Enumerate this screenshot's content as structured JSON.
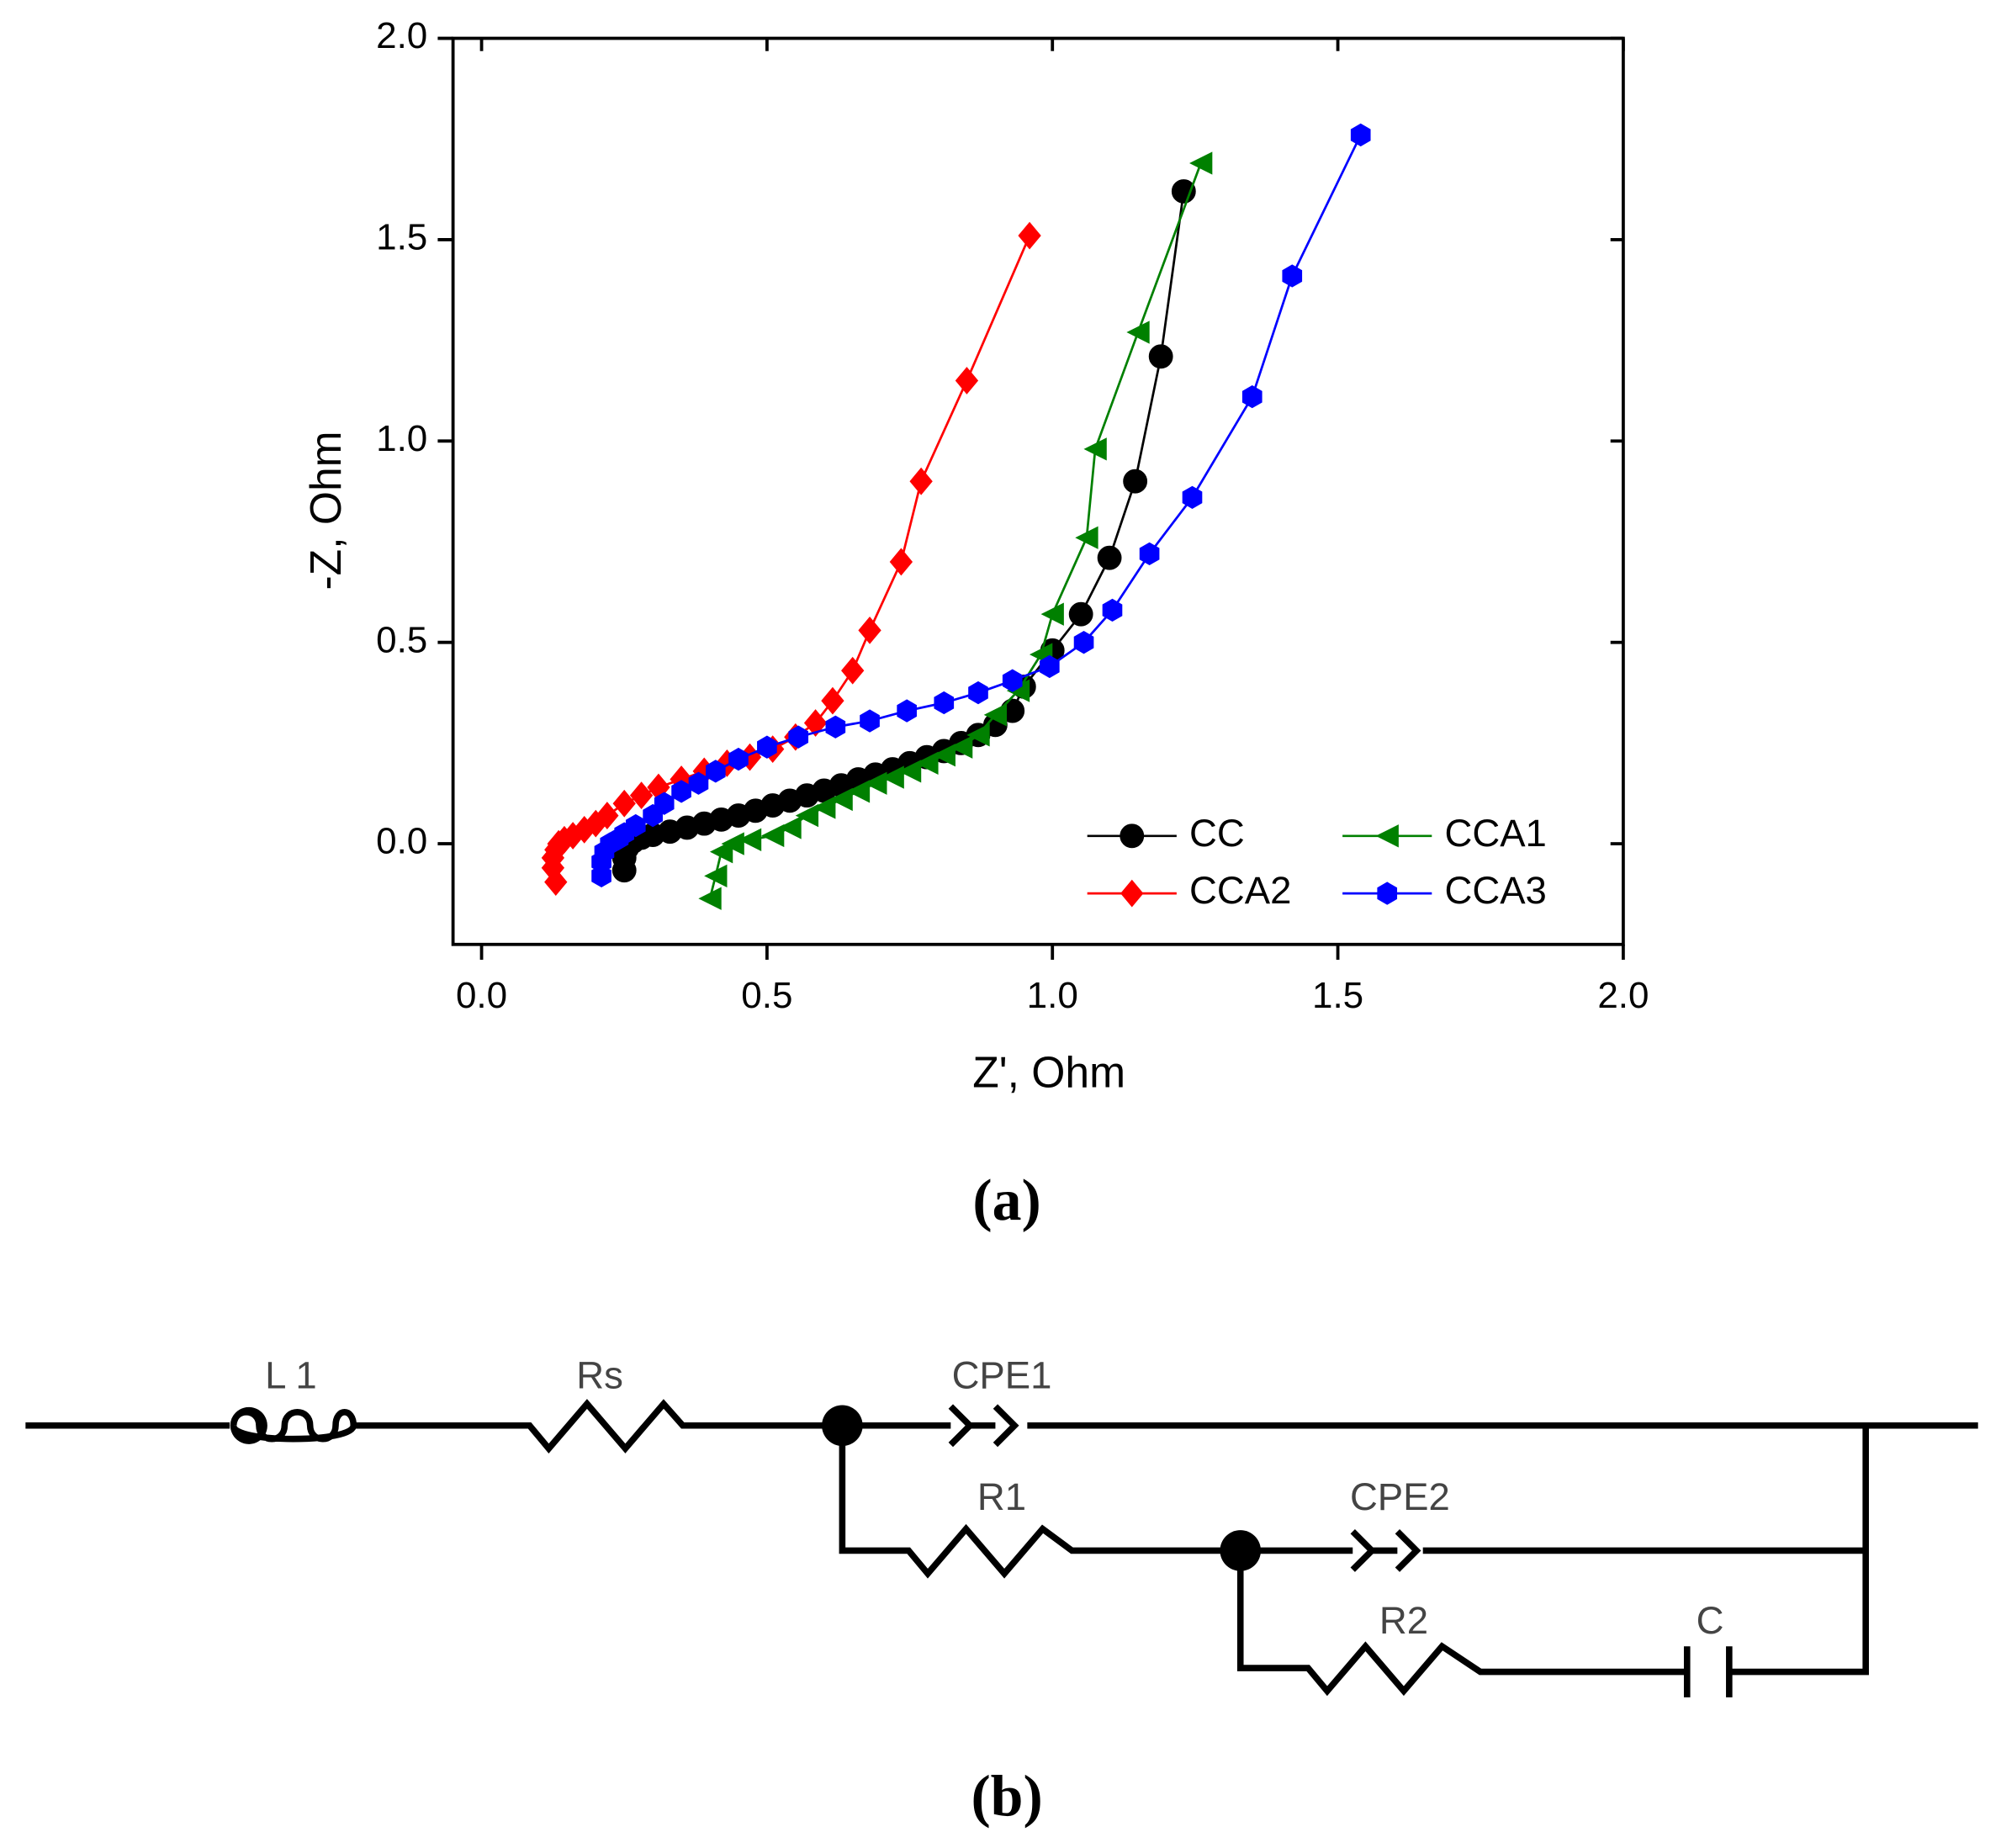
{
  "chart_data": {
    "type": "line",
    "xlabel": "Z', Ohm",
    "ylabel": "-Z, Ohm",
    "xlim": [
      -0.05,
      2.0
    ],
    "ylim": [
      -0.25,
      2.0
    ],
    "xticks": [
      {
        "value": 0,
        "label": "0.0"
      },
      0.5,
      {
        "value": 1,
        "label": "1.0"
      },
      1.5,
      {
        "value": 2,
        "label": "2.0"
      }
    ],
    "yticks": [
      {
        "value": 0,
        "label": "0.0"
      },
      0.5,
      {
        "value": 1,
        "label": "1.0"
      },
      1.5,
      {
        "value": 2,
        "label": "2.0"
      }
    ],
    "legend": "lower right",
    "series": [
      {
        "name": "CC",
        "color": "#000000",
        "marker": "circle",
        "x": [
          0.25,
          0.25,
          0.255,
          0.265,
          0.28,
          0.3,
          0.33,
          0.36,
          0.39,
          0.42,
          0.45,
          0.48,
          0.51,
          0.54,
          0.57,
          0.6,
          0.63,
          0.66,
          0.69,
          0.72,
          0.75,
          0.78,
          0.81,
          0.84,
          0.87,
          0.9,
          0.93,
          0.95,
          1.0,
          1.05,
          1.1,
          1.145,
          1.19,
          1.23
        ],
        "y": [
          -0.066,
          -0.035,
          -0.01,
          0.005,
          0.015,
          0.022,
          0.03,
          0.04,
          0.05,
          0.06,
          0.07,
          0.082,
          0.095,
          0.107,
          0.12,
          0.132,
          0.145,
          0.16,
          0.172,
          0.185,
          0.2,
          0.215,
          0.23,
          0.25,
          0.27,
          0.295,
          0.33,
          0.39,
          0.48,
          0.57,
          0.71,
          0.9,
          1.21,
          1.62
        ]
      },
      {
        "name": "CCA1",
        "color": "#008000",
        "marker": "triangle-left",
        "x": [
          0.4,
          0.41,
          0.42,
          0.44,
          0.47,
          0.51,
          0.54,
          0.57,
          0.6,
          0.63,
          0.66,
          0.69,
          0.72,
          0.75,
          0.78,
          0.81,
          0.84,
          0.87,
          0.9,
          0.94,
          0.98,
          1.0,
          1.06,
          1.075,
          1.15,
          1.26
        ],
        "y": [
          -0.136,
          -0.08,
          -0.02,
          0.0,
          0.01,
          0.02,
          0.04,
          0.07,
          0.09,
          0.11,
          0.13,
          0.15,
          0.165,
          0.18,
          0.2,
          0.22,
          0.24,
          0.27,
          0.32,
          0.38,
          0.47,
          0.57,
          0.76,
          0.98,
          1.27,
          1.69
        ]
      },
      {
        "name": "CCA2",
        "color": "#ff0000",
        "marker": "diamond",
        "x": [
          0.13,
          0.125,
          0.125,
          0.13,
          0.135,
          0.145,
          0.16,
          0.18,
          0.2,
          0.22,
          0.25,
          0.28,
          0.31,
          0.35,
          0.39,
          0.43,
          0.47,
          0.51,
          0.55,
          0.585,
          0.615,
          0.65,
          0.68,
          0.735,
          0.77,
          0.85,
          0.96
        ],
        "y": [
          -0.095,
          -0.06,
          -0.035,
          -0.015,
          0.0,
          0.01,
          0.02,
          0.035,
          0.05,
          0.07,
          0.1,
          0.12,
          0.14,
          0.16,
          0.18,
          0.2,
          0.215,
          0.235,
          0.265,
          0.3,
          0.355,
          0.43,
          0.53,
          0.7,
          0.9,
          1.15,
          1.51
        ]
      },
      {
        "name": "CCA3",
        "color": "#0000ff",
        "marker": "hexagon",
        "x": [
          0.21,
          0.21,
          0.215,
          0.225,
          0.24,
          0.25,
          0.27,
          0.3,
          0.32,
          0.35,
          0.38,
          0.41,
          0.45,
          0.5,
          0.555,
          0.62,
          0.68,
          0.745,
          0.81,
          0.87,
          0.93,
          0.995,
          1.055,
          1.105,
          1.17,
          1.245,
          1.35,
          1.42,
          1.54
        ],
        "y": [
          -0.08,
          -0.045,
          -0.02,
          0.0,
          0.012,
          0.025,
          0.045,
          0.07,
          0.1,
          0.13,
          0.15,
          0.18,
          0.21,
          0.24,
          0.265,
          0.29,
          0.305,
          0.33,
          0.35,
          0.375,
          0.405,
          0.44,
          0.5,
          0.58,
          0.72,
          0.86,
          1.11,
          1.41,
          1.76
        ]
      }
    ],
    "caption": "(a)"
  },
  "circuit": {
    "labels": [
      "L 1",
      "Rs",
      "CPE1",
      "R1",
      "CPE2",
      "R2",
      "C"
    ],
    "caption": "(b)"
  }
}
